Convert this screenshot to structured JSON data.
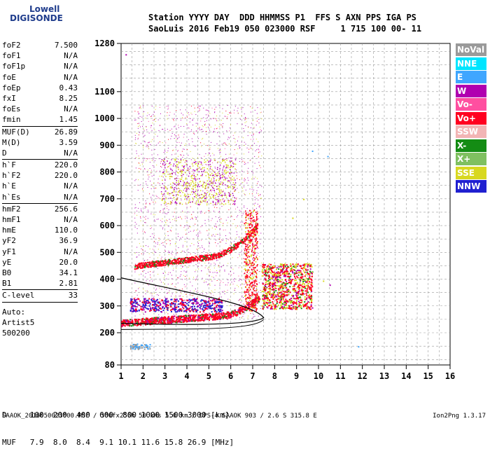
{
  "logo": {
    "line1": "Lowell",
    "line2": "DIGISONDE"
  },
  "header": {
    "line1": "Station YYYY DAY  DDD HHMMSS P1  FFS S AXN PPS IGA PS",
    "line2": "SaoLuis 2016 Feb19 050 023000 RSF     1 715 100 00- 11"
  },
  "params": [
    {
      "name": "foF2",
      "value": "7.500"
    },
    {
      "name": "foF1",
      "value": "N/A"
    },
    {
      "name": "foF1p",
      "value": "N/A"
    },
    {
      "name": "foE",
      "value": "N/A"
    },
    {
      "name": "foEp",
      "value": "0.43"
    },
    {
      "name": "fxI",
      "value": "8.25"
    },
    {
      "name": "foEs",
      "value": "N/A"
    },
    {
      "name": "fmin",
      "value": "1.45"
    },
    {
      "sep": true
    },
    {
      "name": "MUF(D)",
      "value": "26.89"
    },
    {
      "name": "M(D)",
      "value": "3.59"
    },
    {
      "name": "D",
      "value": "N/A"
    },
    {
      "sep": true
    },
    {
      "name": "h`F",
      "value": "220.0"
    },
    {
      "name": "h`F2",
      "value": "220.0"
    },
    {
      "name": "h`E",
      "value": "N/A"
    },
    {
      "name": "h`Es",
      "value": "N/A"
    },
    {
      "sep": true
    },
    {
      "name": "hmF2",
      "value": "256.6"
    },
    {
      "name": "hmF1",
      "value": "N/A"
    },
    {
      "name": "hmE",
      "value": "110.0"
    },
    {
      "name": "yF2",
      "value": "36.9"
    },
    {
      "name": "yF1",
      "value": "N/A"
    },
    {
      "name": "yE",
      "value": "20.0"
    },
    {
      "name": "B0",
      "value": "34.1"
    },
    {
      "name": "B1",
      "value": "2.81"
    },
    {
      "sep": true
    },
    {
      "name": "C-level",
      "value": "33"
    },
    {
      "sep": true
    }
  ],
  "auto": [
    "Auto:",
    "Artist5",
    "500200"
  ],
  "legend": [
    {
      "label": "NoVal",
      "color": "#9a9a9a"
    },
    {
      "label": "NNE",
      "color": "#00e5ff"
    },
    {
      "label": "E",
      "color": "#3fa6ff"
    },
    {
      "label": "W",
      "color": "#b000b0"
    },
    {
      "label": "Vo-",
      "color": "#ff4fa0"
    },
    {
      "label": "Vo+",
      "color": "#ff0020"
    },
    {
      "label": "SSW",
      "color": "#f2b5b5"
    },
    {
      "label": "X-",
      "color": "#148c14"
    },
    {
      "label": "X+",
      "color": "#7fc060"
    },
    {
      "label": "SSE",
      "color": "#d8d820"
    },
    {
      "label": "NNW",
      "color": "#2020d0"
    }
  ],
  "axes": {
    "y_ticks": [
      "80",
      "200",
      "300",
      "400",
      "500",
      "600",
      "700",
      "800",
      "900",
      "1000",
      "1100",
      "1280"
    ],
    "x_ticks": [
      "1",
      "2",
      "3",
      "4",
      "5",
      "6",
      "7",
      "8",
      "9",
      "10",
      "11",
      "12",
      "13",
      "14",
      "15",
      "16"
    ]
  },
  "muf_table": {
    "d_row": "D     100  200  400  600  800 1000 1500 3000 [km]",
    "muf_row": "MUF   7.9  8.0  8.4  9.1 10.1 11.6 15.8 26.9 [MHz]"
  },
  "footer": "SAAOK_2016050023000.RSF / 300fx256h 50 kHs 5.0 km / DPS-4 SAAOK 903 / 2.6 S 315.8 E",
  "version": "Ion2Png 1.3.17"
}
